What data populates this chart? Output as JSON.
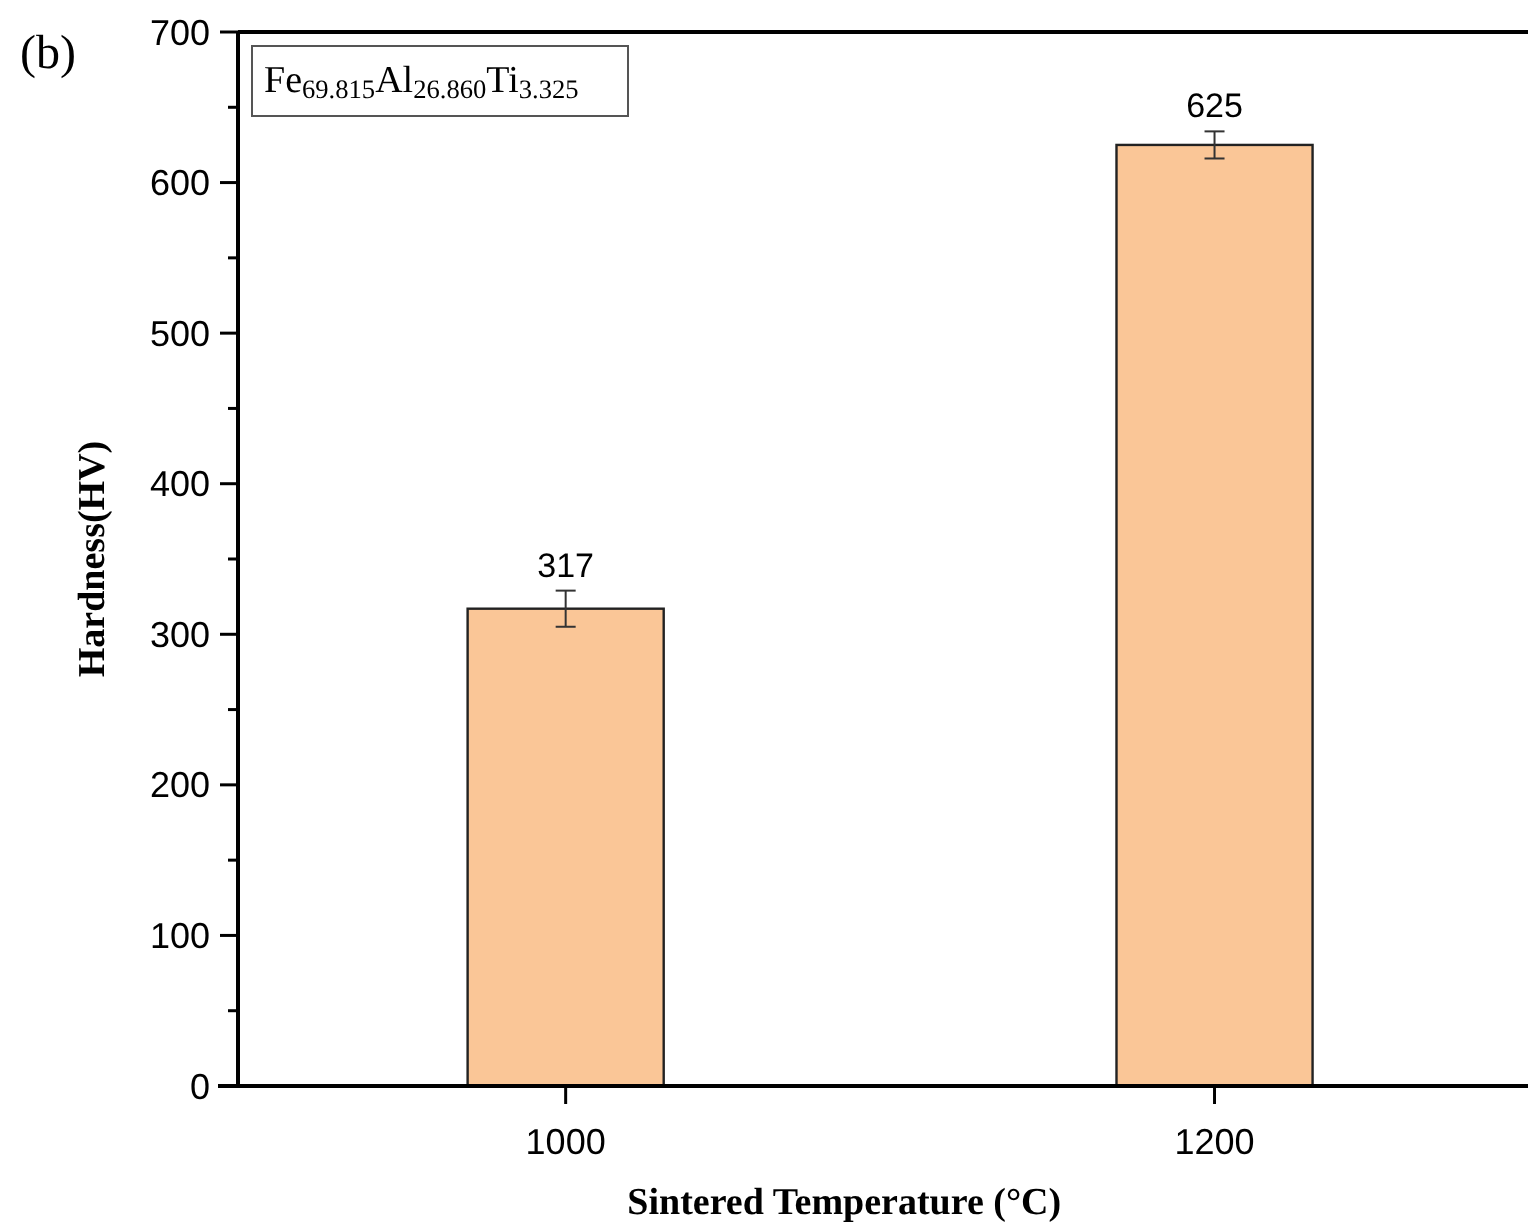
{
  "chart_data": {
    "type": "bar",
    "xlabel": "Sintered Temperature (°C)",
    "ylabel": "Hardness(HV)",
    "categories": [
      "1000",
      "1200"
    ],
    "values": [
      317,
      625
    ],
    "errors": [
      12,
      9
    ],
    "color": "#fac697",
    "data_labels": true,
    "ylim": [
      0,
      700
    ],
    "yticks": [
      0,
      {
        "value": 50,
        "label": null
      },
      100,
      {
        "value": 150,
        "label": null
      },
      200,
      {
        "value": 250,
        "label": null
      },
      300,
      {
        "value": 350,
        "label": null
      },
      400,
      {
        "value": 450,
        "label": null
      },
      500,
      {
        "value": 550,
        "label": null
      },
      600,
      {
        "value": 650,
        "label": null
      },
      700
    ],
    "annotations": [
      "(b)",
      "Fe$_{69.815}$Al$_{26.860}$Ti$_{3.325}$"
    ]
  }
}
